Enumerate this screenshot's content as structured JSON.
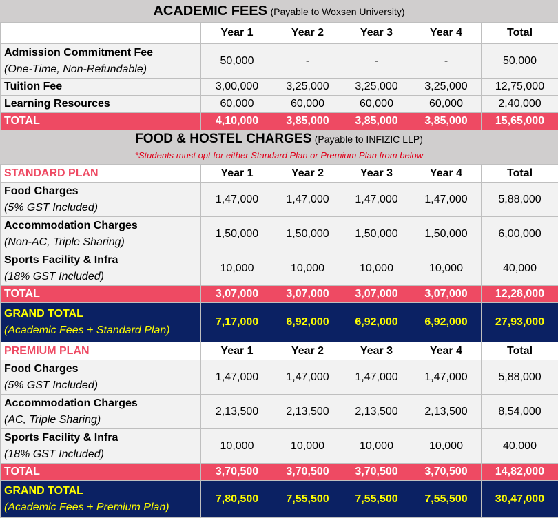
{
  "academic": {
    "title": "ACADEMIC FEES",
    "subtitle": "(Payable to Woxsen University)",
    "columns": [
      "Year 1",
      "Year 2",
      "Year 3",
      "Year 4",
      "Total"
    ],
    "rows": [
      {
        "label": "Admission Commitment Fee",
        "sublabel": "(One-Time, Non-Refundable)",
        "values": [
          "50,000",
          "-",
          "-",
          "-",
          "50,000"
        ]
      },
      {
        "label": "Tuition Fee",
        "values": [
          "3,00,000",
          "3,25,000",
          "3,25,000",
          "3,25,000",
          "12,75,000"
        ]
      },
      {
        "label": "Learning Resources",
        "values": [
          "60,000",
          "60,000",
          "60,000",
          "60,000",
          "2,40,000"
        ]
      }
    ],
    "total": {
      "label": "TOTAL",
      "values": [
        "4,10,000",
        "3,85,000",
        "3,85,000",
        "3,85,000",
        "15,65,000"
      ]
    }
  },
  "food": {
    "title": "FOOD & HOSTEL CHARGES",
    "subtitle": "(Payable to INFIZIC LLP)",
    "note": "*Students must opt for either Standard Plan or Premium Plan from below"
  },
  "standard": {
    "name": "STANDARD PLAN",
    "columns": [
      "Year 1",
      "Year 2",
      "Year 3",
      "Year 4",
      "Total"
    ],
    "rows": [
      {
        "label": "Food Charges",
        "sublabel": "(5% GST Included)",
        "values": [
          "1,47,000",
          "1,47,000",
          "1,47,000",
          "1,47,000",
          "5,88,000"
        ]
      },
      {
        "label": "Accommodation Charges",
        "sublabel": "(Non-AC, Triple Sharing)",
        "values": [
          "1,50,000",
          "1,50,000",
          "1,50,000",
          "1,50,000",
          "6,00,000"
        ]
      },
      {
        "label": "Sports Facility & Infra",
        "sublabel": "(18% GST Included)",
        "values": [
          "10,000",
          "10,000",
          "10,000",
          "10,000",
          "40,000"
        ]
      }
    ],
    "total": {
      "label": "TOTAL",
      "values": [
        "3,07,000",
        "3,07,000",
        "3,07,000",
        "3,07,000",
        "12,28,000"
      ]
    },
    "grand": {
      "label": "GRAND TOTAL",
      "sublabel": "(Academic Fees + Standard Plan)",
      "values": [
        "7,17,000",
        "6,92,000",
        "6,92,000",
        "6,92,000",
        "27,93,000"
      ]
    }
  },
  "premium": {
    "name": "PREMIUM PLAN",
    "columns": [
      "Year 1",
      "Year 2",
      "Year 3",
      "Year 4",
      "Total"
    ],
    "rows": [
      {
        "label": "Food Charges",
        "sublabel": "(5% GST Included)",
        "values": [
          "1,47,000",
          "1,47,000",
          "1,47,000",
          "1,47,000",
          "5,88,000"
        ]
      },
      {
        "label": "Accommodation Charges",
        "sublabel": "(AC, Triple Sharing)",
        "values": [
          "2,13,500",
          "2,13,500",
          "2,13,500",
          "2,13,500",
          "8,54,000"
        ]
      },
      {
        "label": "Sports Facility & Infra",
        "sublabel": "(18% GST Included)",
        "values": [
          "10,000",
          "10,000",
          "10,000",
          "10,000",
          "40,000"
        ]
      }
    ],
    "total": {
      "label": "TOTAL",
      "values": [
        "3,70,500",
        "3,70,500",
        "3,70,500",
        "3,70,500",
        "14,82,000"
      ]
    },
    "grand": {
      "label": "GRAND TOTAL",
      "sublabel": "(Academic Fees + Premium Plan)",
      "values": [
        "7,80,500",
        "7,55,500",
        "7,55,500",
        "7,55,500",
        "30,47,000"
      ]
    }
  },
  "colors": {
    "header_grey": "#d0cece",
    "row_grey": "#f2f2f2",
    "total_red": "#ee4a63",
    "grand_navy": "#0b2163",
    "grand_text": "#ffff00",
    "note_red": "#e0001a"
  }
}
